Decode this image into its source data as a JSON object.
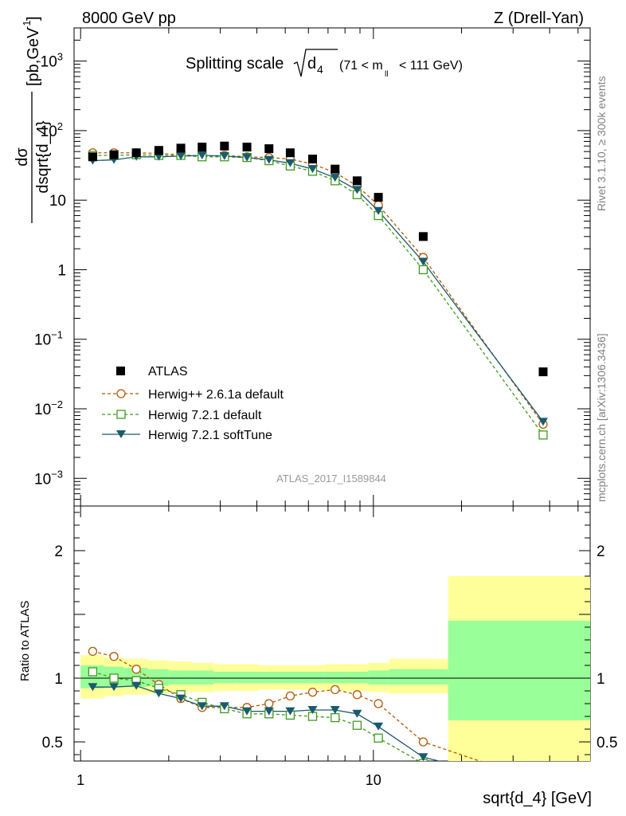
{
  "header": {
    "left": "8000 GeV pp",
    "right": "Z (Drell-Yan)"
  },
  "main_title": {
    "prefix": "Splitting scale",
    "symbol": "d",
    "subscript": "4",
    "range_open": "(71 < m",
    "range_sub": "ll",
    "range_close": "< 111 GeV)"
  },
  "side_labels": {
    "rivet": "Rivet 3.1.10, ≥ 300k events",
    "mcplots": "mcplots.cern.ch [arXiv:1306.3436]"
  },
  "analysis_label": "ATLAS_2017_I1589844",
  "y_label_top": {
    "numerator": "dσ",
    "denominator": "dsqrt{d_4}",
    "units": "[pb,GeV",
    "units_exp": "-1",
    "units_close": "]"
  },
  "y_label_bottom": "Ratio to ATLAS",
  "x_label": "sqrt{d_4} [GeV]",
  "colors": {
    "atlas": "#000000",
    "herwigpp": "#b35806",
    "herwig721": "#3f9a1f",
    "softtune": "#1b5a6e",
    "band_inner": "#99ff99",
    "band_outer": "#ffff99"
  },
  "chart_data": [
    {
      "type": "scatter",
      "name": "main",
      "x_scale": "log",
      "y_scale": "log",
      "xlim": [
        0.95,
        55
      ],
      "ylim": [
        0.0004,
        3000
      ],
      "x_ticks": [
        {
          "v": 1,
          "label": "1"
        },
        {
          "v": 10,
          "label": "10"
        }
      ],
      "y_ticks": [
        {
          "v": 0.001,
          "base": "10",
          "exp": "−3"
        },
        {
          "v": 0.01,
          "base": "10",
          "exp": "−2"
        },
        {
          "v": 0.1,
          "base": "10",
          "exp": "−1"
        },
        {
          "v": 1,
          "base": "1",
          "exp": ""
        },
        {
          "v": 10,
          "base": "10",
          "exp": ""
        },
        {
          "v": 100,
          "base": "10",
          "exp": "2"
        },
        {
          "v": 1000,
          "base": "10",
          "exp": "3"
        }
      ],
      "legend_position": "lower-left",
      "x": [
        1.1,
        1.3,
        1.55,
        1.85,
        2.2,
        2.6,
        3.1,
        3.7,
        4.4,
        5.2,
        6.2,
        7.4,
        8.8,
        10.4,
        14.8,
        38.0
      ],
      "series": [
        {
          "name": "ATLAS",
          "key": "atlas",
          "marker": "square",
          "line": "none",
          "values": [
            42,
            45,
            48,
            52,
            56,
            58,
            60,
            58,
            55,
            48,
            39,
            28,
            19,
            11,
            3.0,
            0.034
          ]
        },
        {
          "name": "Herwig++ 2.6.1a default",
          "key": "herwigpp",
          "marker": "circle",
          "line": "dashed",
          "values": [
            48,
            48,
            48,
            47,
            45,
            43,
            44,
            42,
            41,
            39,
            33,
            25,
            16,
            8.5,
            1.5,
            0.006
          ]
        },
        {
          "name": "Herwig 7.2.1 default",
          "key": "herwig721",
          "marker": "open-square",
          "line": "dashed",
          "values": [
            44,
            44,
            45,
            44,
            44,
            42,
            42,
            41,
            37,
            31,
            26,
            19,
            12,
            6,
            1.0,
            0.0042
          ]
        },
        {
          "name": "Herwig 7.2.1 softTune",
          "key": "softtune",
          "marker": "triangle-down",
          "line": "solid",
          "values": [
            37,
            38,
            42,
            42,
            43,
            44,
            43,
            41,
            38,
            34,
            28,
            21,
            14,
            7,
            1.3,
            0.0065
          ]
        }
      ]
    },
    {
      "type": "line",
      "name": "ratio",
      "x_scale": "log",
      "y_scale": "linear",
      "xlim": [
        0.95,
        55
      ],
      "ylim": [
        0.35,
        2.35
      ],
      "y_ticks": [
        {
          "v": 0.5,
          "label": "0.5"
        },
        {
          "v": 1,
          "label": "1"
        },
        {
          "v": 2,
          "label": "2"
        }
      ],
      "bands": {
        "bin_edges": [
          1.0,
          1.2,
          1.4,
          1.7,
          2.0,
          2.4,
          2.85,
          3.4,
          4.05,
          4.8,
          5.7,
          6.8,
          8.05,
          9.6,
          11.3,
          18.0,
          55.0
        ],
        "inner": [
          [
            0.92,
            1.1
          ],
          [
            0.93,
            1.09
          ],
          [
            0.93,
            1.08
          ],
          [
            0.94,
            1.07
          ],
          [
            0.95,
            1.06
          ],
          [
            0.95,
            1.06
          ],
          [
            0.96,
            1.05
          ],
          [
            0.96,
            1.05
          ],
          [
            0.96,
            1.05
          ],
          [
            0.96,
            1.05
          ],
          [
            0.96,
            1.05
          ],
          [
            0.96,
            1.05
          ],
          [
            0.96,
            1.05
          ],
          [
            0.95,
            1.06
          ],
          [
            0.95,
            1.07
          ],
          [
            0.67,
            1.45
          ]
        ],
        "outer": [
          [
            0.84,
            1.18
          ],
          [
            0.86,
            1.16
          ],
          [
            0.87,
            1.15
          ],
          [
            0.88,
            1.14
          ],
          [
            0.89,
            1.13
          ],
          [
            0.89,
            1.12
          ],
          [
            0.9,
            1.11
          ],
          [
            0.9,
            1.11
          ],
          [
            0.91,
            1.1
          ],
          [
            0.91,
            1.1
          ],
          [
            0.91,
            1.1
          ],
          [
            0.9,
            1.11
          ],
          [
            0.9,
            1.11
          ],
          [
            0.89,
            1.12
          ],
          [
            0.88,
            1.15
          ],
          [
            0.35,
            1.8
          ]
        ]
      },
      "x": [
        1.1,
        1.3,
        1.55,
        1.85,
        2.2,
        2.6,
        3.1,
        3.7,
        4.4,
        5.2,
        6.2,
        7.4,
        8.8,
        10.4,
        14.8,
        38.0
      ],
      "series": [
        {
          "name": "Herwig++ 2.6.1a default",
          "key": "herwigpp",
          "marker": "circle",
          "line": "dashed",
          "values": [
            1.21,
            1.17,
            1.07,
            0.95,
            0.84,
            0.77,
            0.77,
            0.77,
            0.8,
            0.86,
            0.89,
            0.91,
            0.87,
            0.8,
            0.5,
            0.18
          ]
        },
        {
          "name": "Herwig 7.2.1 default",
          "key": "herwig721",
          "marker": "open-square",
          "line": "dashed",
          "values": [
            1.05,
            1.0,
            0.98,
            0.92,
            0.87,
            0.81,
            0.76,
            0.72,
            0.72,
            0.71,
            0.7,
            0.69,
            0.63,
            0.53,
            0.33,
            0.12
          ]
        },
        {
          "name": "Herwig 7.2.1 softTune",
          "key": "softtune",
          "marker": "triangle-down",
          "line": "solid",
          "values": [
            0.93,
            0.93,
            0.94,
            0.88,
            0.84,
            0.78,
            0.78,
            0.74,
            0.74,
            0.74,
            0.75,
            0.75,
            0.72,
            0.62,
            0.38,
            0.15
          ]
        }
      ]
    }
  ]
}
